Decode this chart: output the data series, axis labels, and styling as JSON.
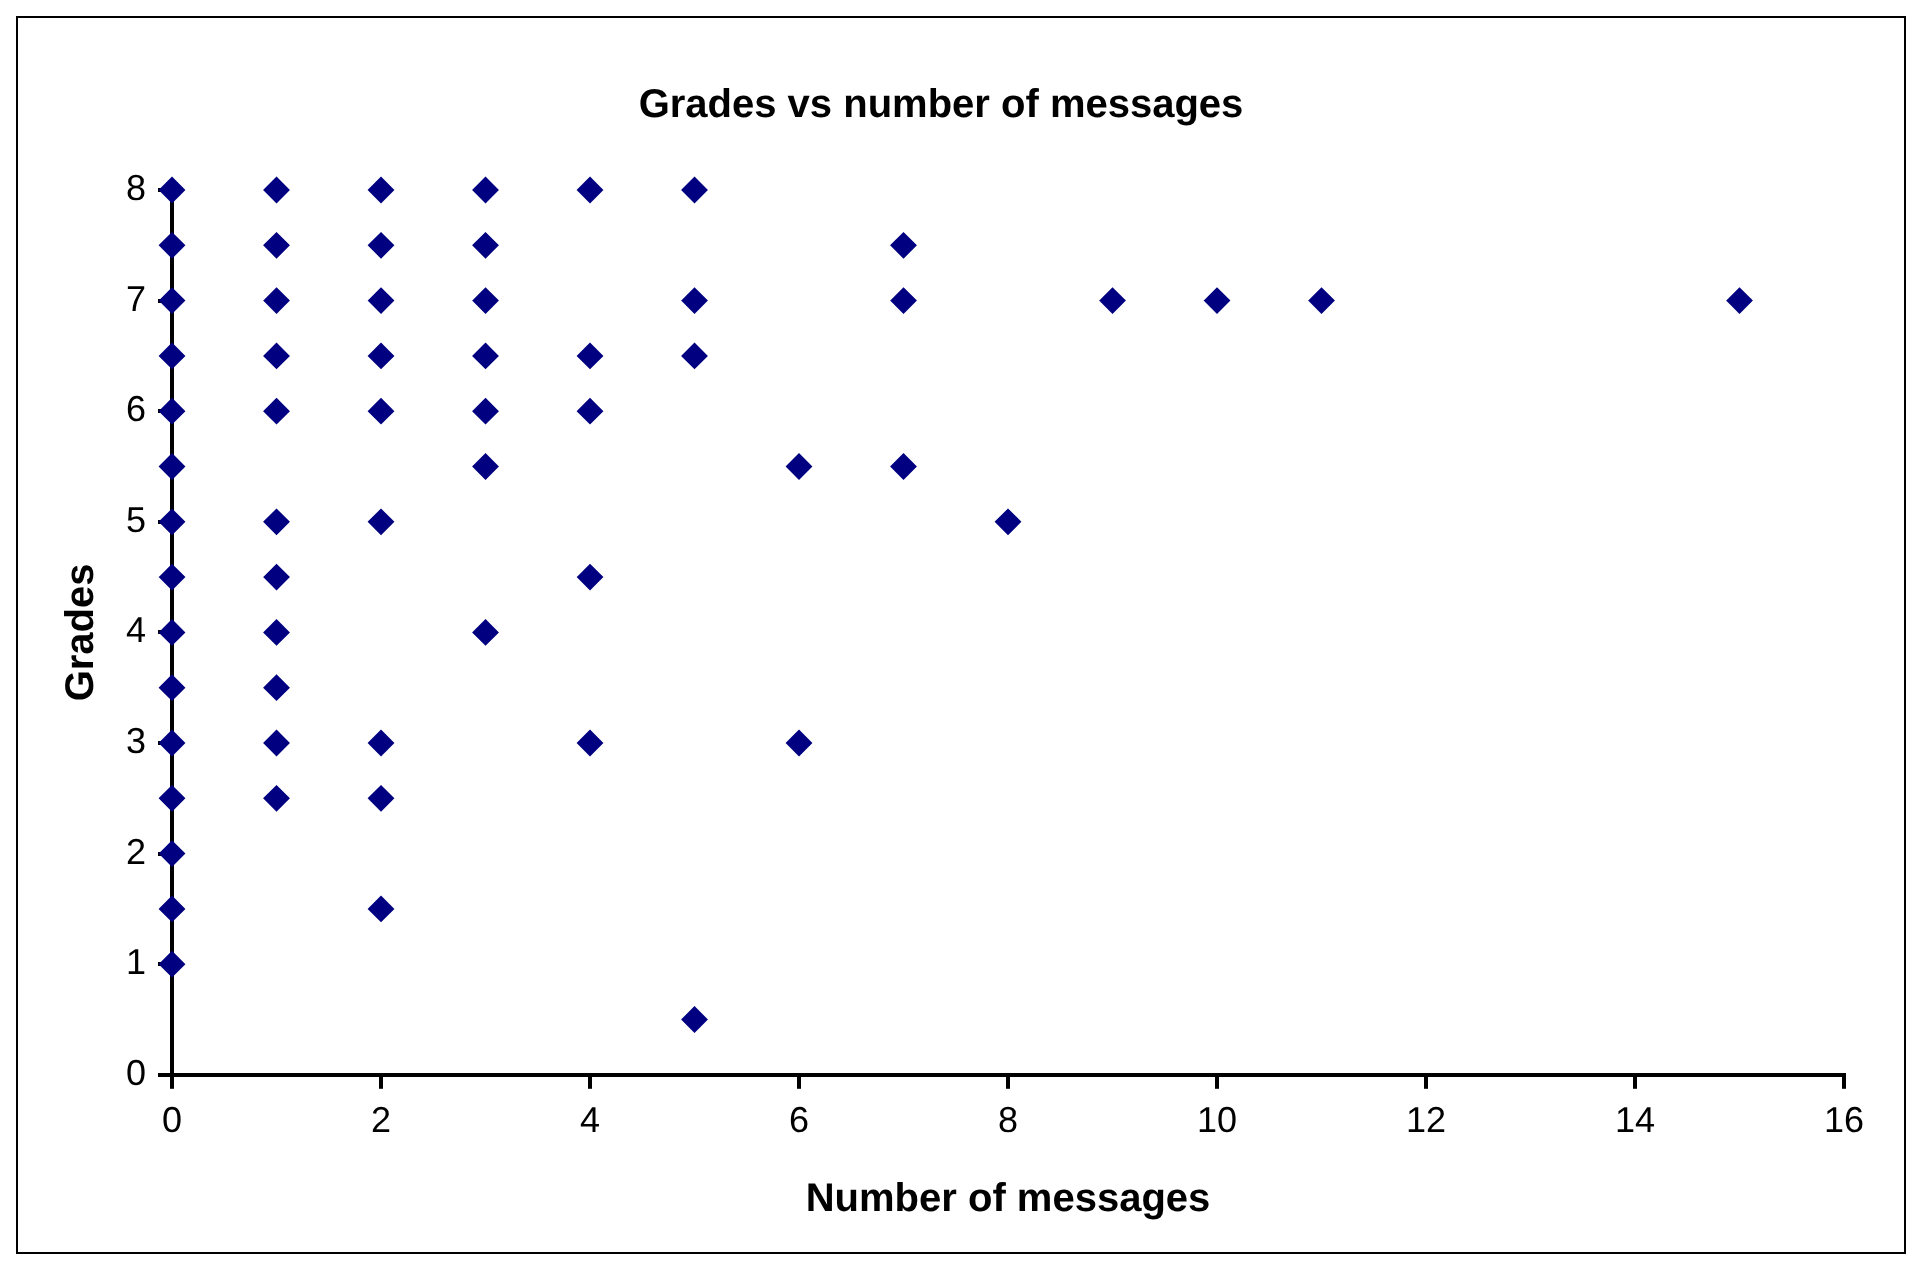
{
  "chart_data": {
    "type": "scatter",
    "title": "Grades vs number of messages",
    "xlabel": "Number of messages",
    "ylabel": "Grades",
    "x": [
      0,
      0,
      0,
      0,
      0,
      0,
      0,
      0,
      0,
      0,
      0,
      0,
      0,
      0,
      0,
      1,
      1,
      1,
      1,
      1,
      1,
      1,
      1,
      1,
      1,
      1,
      2,
      2,
      2,
      2,
      2,
      2,
      2,
      2,
      2,
      3,
      3,
      3,
      3,
      3,
      3,
      3,
      4,
      4,
      4,
      4,
      4,
      5,
      5,
      5,
      5,
      6,
      6,
      7,
      7,
      7,
      8,
      9,
      10,
      11,
      15
    ],
    "series": [
      {
        "color": "#000080",
        "values": [
          8,
          7.5,
          7,
          6.5,
          6,
          5.5,
          5,
          4.5,
          4,
          3.5,
          3,
          2.5,
          2,
          1.5,
          1,
          8,
          7.5,
          7,
          6.5,
          6,
          5,
          4.5,
          4,
          3.5,
          3,
          2.5,
          8,
          7.5,
          7,
          6.5,
          6,
          5,
          3,
          2.5,
          1.5,
          8,
          7.5,
          7,
          6.5,
          6,
          5.5,
          4,
          8,
          6.5,
          6,
          4.5,
          3,
          8,
          7,
          6.5,
          0.5,
          5.5,
          3,
          7.5,
          7,
          5.5,
          5,
          7,
          7,
          7,
          7
        ]
      }
    ],
    "xlim": [
      0,
      16
    ],
    "xticks": [
      0,
      2,
      4,
      6,
      8,
      10,
      12,
      14,
      16
    ],
    "ylim": [
      0,
      8
    ],
    "yticks": [
      0,
      1,
      2,
      3,
      4,
      5,
      6,
      7,
      8
    ],
    "grid": false,
    "legend": false,
    "marker": "diamond"
  }
}
